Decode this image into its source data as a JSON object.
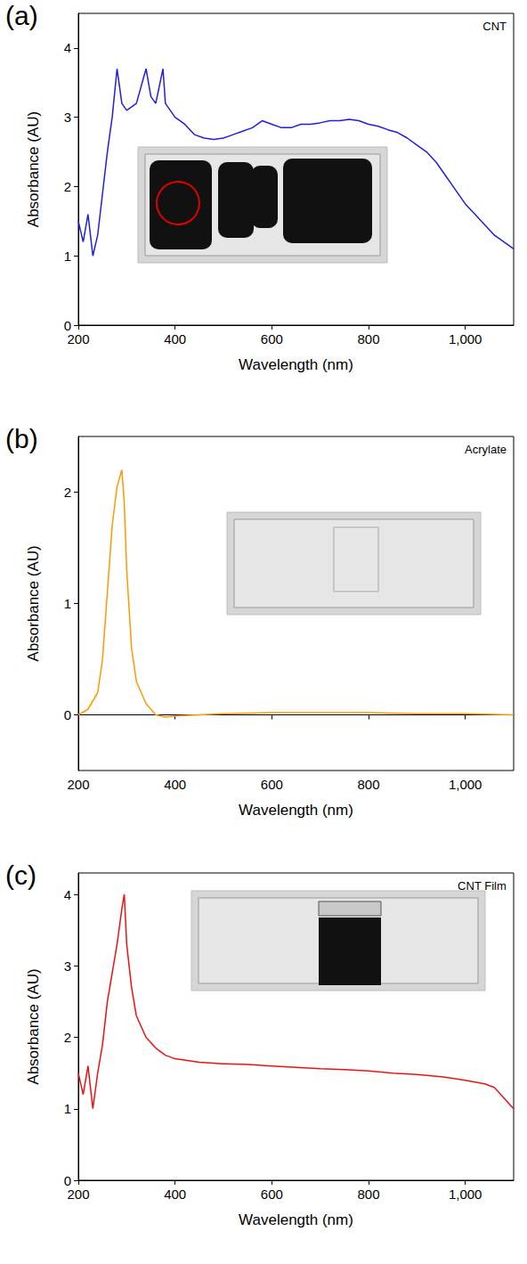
{
  "chart_data": [
    {
      "type": "line",
      "panel": "(a)",
      "title": "CNT",
      "x_label": "Wavelength (nm)",
      "y_label": "Absorbance (AU)",
      "color": "#1f1fe0",
      "grid": false,
      "x": [
        200,
        210,
        220,
        230,
        240,
        250,
        260,
        270,
        280,
        290,
        300,
        320,
        340,
        350,
        360,
        375,
        380,
        400,
        420,
        440,
        460,
        480,
        500,
        520,
        540,
        560,
        580,
        600,
        620,
        640,
        660,
        680,
        700,
        720,
        740,
        760,
        780,
        800,
        820,
        840,
        860,
        880,
        900,
        920,
        940,
        960,
        980,
        1000,
        1020,
        1040,
        1060,
        1080,
        1100
      ],
      "values": [
        1.5,
        1.2,
        1.6,
        1.0,
        1.3,
        1.9,
        2.5,
        3.0,
        3.7,
        3.2,
        3.1,
        3.2,
        3.7,
        3.3,
        3.2,
        3.7,
        3.2,
        3.0,
        2.9,
        2.75,
        2.7,
        2.68,
        2.7,
        2.75,
        2.8,
        2.85,
        2.95,
        2.9,
        2.85,
        2.85,
        2.9,
        2.9,
        2.92,
        2.95,
        2.95,
        2.97,
        2.95,
        2.9,
        2.87,
        2.82,
        2.78,
        2.7,
        2.6,
        2.5,
        2.35,
        2.15,
        1.95,
        1.75,
        1.6,
        1.45,
        1.3,
        1.2,
        1.1
      ],
      "xlim": [
        200,
        1100
      ],
      "xticks": [
        200,
        400,
        600,
        800,
        1000
      ],
      "ylim": [
        0,
        4.5
      ],
      "yticks": [
        0,
        1,
        2,
        3,
        4
      ]
    },
    {
      "type": "line",
      "panel": "(b)",
      "title": "Acrylate",
      "x_label": "Wavelength (nm)",
      "y_label": "Absorbance (AU)",
      "color": "#ff9900",
      "grid": false,
      "x": [
        200,
        220,
        240,
        250,
        260,
        270,
        280,
        290,
        295,
        300,
        310,
        320,
        340,
        360,
        380,
        400,
        500,
        600,
        700,
        800,
        900,
        1000,
        1100
      ],
      "values": [
        0,
        0.05,
        0.2,
        0.5,
        1.1,
        1.7,
        2.05,
        2.2,
        1.9,
        1.3,
        0.6,
        0.3,
        0.1,
        0.0,
        -0.02,
        -0.01,
        0.01,
        0.02,
        0.02,
        0.02,
        0.01,
        0.01,
        0
      ],
      "xlim": [
        200,
        1100
      ],
      "xticks": [
        200,
        400,
        600,
        800,
        1000
      ],
      "ylim": [
        -0.5,
        2.5
      ],
      "yticks": [
        0,
        1,
        2
      ]
    },
    {
      "type": "line",
      "panel": "(c)",
      "title": "CNT Film",
      "x_label": "Wavelength (nm)",
      "y_label": "Absorbance (AU)",
      "color": "#ee1111",
      "grid": false,
      "x": [
        200,
        210,
        220,
        230,
        240,
        250,
        260,
        270,
        280,
        290,
        295,
        300,
        310,
        320,
        340,
        360,
        380,
        400,
        450,
        500,
        550,
        600,
        650,
        700,
        750,
        800,
        850,
        900,
        950,
        1000,
        1040,
        1060,
        1080,
        1100
      ],
      "values": [
        1.5,
        1.2,
        1.6,
        1.0,
        1.5,
        1.9,
        2.5,
        2.9,
        3.3,
        3.8,
        4.0,
        3.3,
        2.7,
        2.3,
        2.0,
        1.85,
        1.75,
        1.7,
        1.65,
        1.63,
        1.62,
        1.6,
        1.58,
        1.56,
        1.55,
        1.53,
        1.5,
        1.48,
        1.45,
        1.4,
        1.35,
        1.3,
        1.15,
        1.0
      ],
      "xlim": [
        200,
        1100
      ],
      "xticks": [
        200,
        400,
        600,
        800,
        1000
      ],
      "ylim": [
        0,
        4.3
      ],
      "yticks": [
        0,
        1,
        2,
        3,
        4
      ]
    }
  ]
}
